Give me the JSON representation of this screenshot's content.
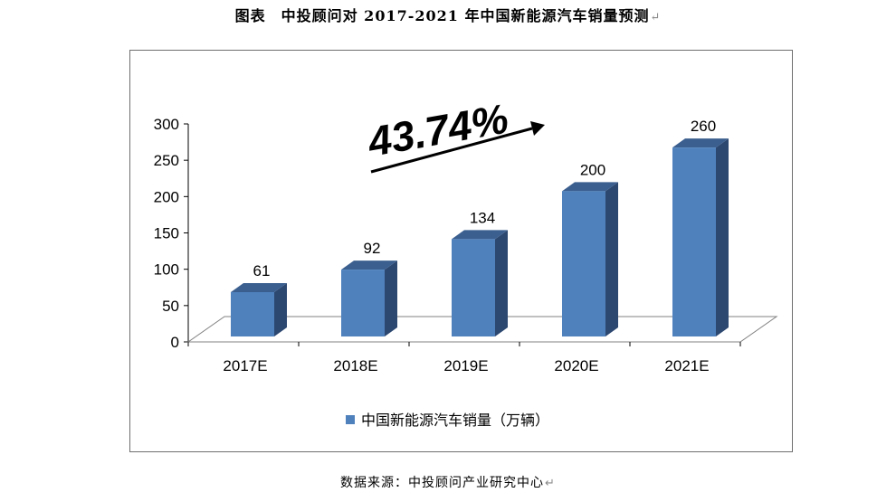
{
  "page": {
    "title": "图表　中投顾问对 2017-2021 年中国新能源汽车销量预测",
    "source": "数据来源：中投顾问产业研究中心",
    "paragraph_mark": "↵"
  },
  "chart_data": {
    "type": "bar",
    "title": "",
    "xlabel": "",
    "ylabel": "",
    "categories": [
      "2017E",
      "2018E",
      "2019E",
      "2020E",
      "2021E"
    ],
    "series": [
      {
        "name": "中国新能源汽车销量（万辆）",
        "values": [
          61,
          92,
          134,
          200,
          260
        ]
      }
    ],
    "ylim": [
      0,
      300
    ],
    "yticks": [
      0,
      50,
      100,
      150,
      200,
      250,
      300
    ],
    "annotation": "43.74%",
    "legend_position": "bottom",
    "grid": false,
    "colors": {
      "bar_front": "#4f81bd",
      "bar_side": "#2c4770",
      "bar_top": "#3b5f8f",
      "floor_line": "#808080"
    }
  }
}
